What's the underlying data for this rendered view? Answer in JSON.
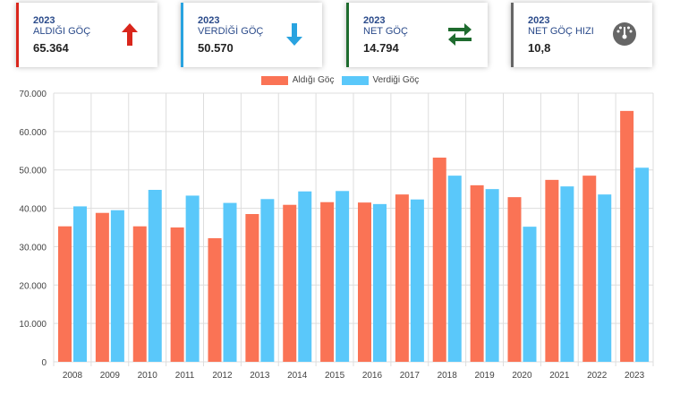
{
  "cards": [
    {
      "year": "2023",
      "label": "ALDIĞI GÖÇ",
      "value": "65.364",
      "icon": "arrow-up-icon",
      "color": "#d9261c"
    },
    {
      "year": "2023",
      "label": "VERDİĞİ GÖÇ",
      "value": "50.570",
      "icon": "arrow-down-icon",
      "color": "#29a3e0"
    },
    {
      "year": "2023",
      "label": "NET GÖÇ",
      "value": "14.794",
      "icon": "exchange-arrows-icon",
      "color": "#1e6b2e"
    },
    {
      "year": "2023",
      "label": "NET GÖÇ HIZI",
      "value": "10,8",
      "icon": "gauge-icon",
      "color": "#666666"
    }
  ],
  "chart_data": {
    "type": "bar",
    "title": "",
    "xlabel": "",
    "ylabel": "",
    "ylim": [
      0,
      70000
    ],
    "yticks": [
      "0",
      "10.000",
      "20.000",
      "30.000",
      "40.000",
      "50.000",
      "60.000",
      "70.000"
    ],
    "grid": true,
    "legend_position": "top-center",
    "categories": [
      "2008",
      "2009",
      "2010",
      "2011",
      "2012",
      "2013",
      "2014",
      "2015",
      "2016",
      "2017",
      "2018",
      "2019",
      "2020",
      "2021",
      "2022",
      "2023"
    ],
    "series": [
      {
        "name": "Aldığı Göç",
        "color": "#fa7355",
        "values": [
          35300,
          38800,
          35300,
          35000,
          32200,
          38500,
          40900,
          41600,
          41500,
          43600,
          53200,
          46000,
          42900,
          47400,
          48500,
          65364
        ]
      },
      {
        "name": "Verdiği Göç",
        "color": "#5ac8fa",
        "values": [
          40500,
          39500,
          44800,
          43300,
          41400,
          42400,
          44400,
          44500,
          41100,
          42300,
          48500,
          45000,
          35200,
          45700,
          43600,
          50570
        ]
      }
    ]
  }
}
